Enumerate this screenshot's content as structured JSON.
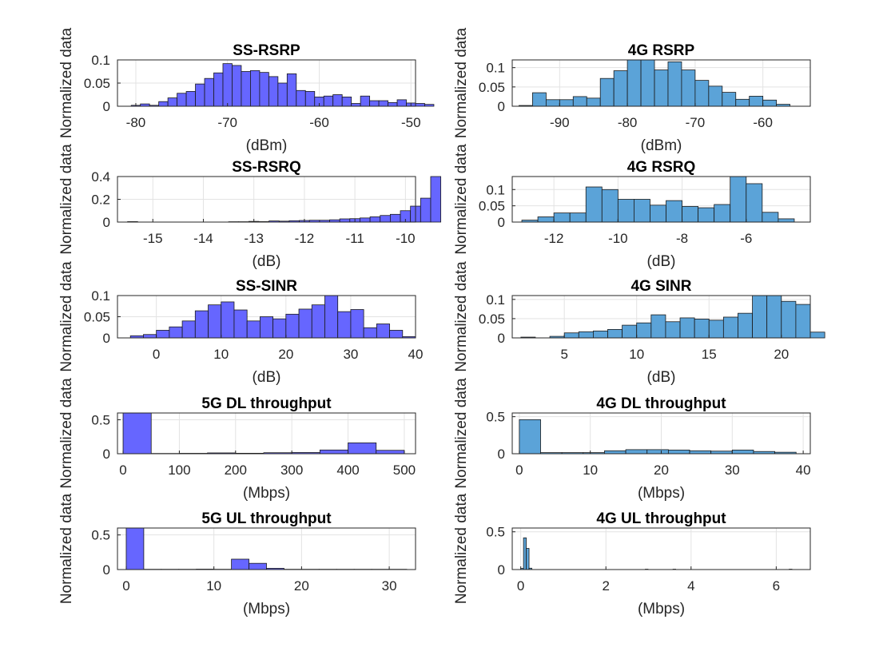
{
  "figure": {
    "ylabel": "Normalized data"
  },
  "colors": {
    "five_g": "#6666ff",
    "four_g": "#5ba3d8"
  },
  "chart_data": [
    {
      "id": "ss-rsrp",
      "type": "bar",
      "title": "SS-RSRP",
      "xlabel": "(dBm)",
      "ylabel": "Normalized data",
      "color": "#6666ff",
      "grid": true,
      "xlim": [
        -82,
        -49.5
      ],
      "ylim": [
        0,
        0.1
      ],
      "xticks": [
        -80,
        -70,
        -60,
        -50
      ],
      "xticklabels": [
        "-80",
        "-70",
        "-60",
        "-50"
      ],
      "yticks": [
        0,
        0.05,
        0.1
      ],
      "yticklabels": [
        "0",
        "0.05",
        "0.1"
      ],
      "bin_start": -80.5,
      "bin_width": 1,
      "values": [
        0.002,
        0.005,
        0.002,
        0.01,
        0.018,
        0.028,
        0.032,
        0.048,
        0.06,
        0.072,
        0.092,
        0.088,
        0.075,
        0.077,
        0.073,
        0.064,
        0.05,
        0.07,
        0.034,
        0.032,
        0.02,
        0.022,
        0.025,
        0.02,
        0.006,
        0.022,
        0.012,
        0.012,
        0.008,
        0.014,
        0.007,
        0.006,
        0.004
      ]
    },
    {
      "id": "lte-rsrp",
      "type": "bar",
      "title": "4G RSRP",
      "xlabel": "(dBm)",
      "ylabel": "Normalized data",
      "color": "#5ba3d8",
      "grid": true,
      "xlim": [
        -97,
        -53
      ],
      "ylim": [
        0,
        0.12
      ],
      "xticks": [
        -90,
        -80,
        -70,
        -60
      ],
      "xticklabels": [
        "-90",
        "-80",
        "-70",
        "-60"
      ],
      "yticks": [
        0,
        0.05,
        0.1
      ],
      "yticklabels": [
        "0",
        "0.05",
        "0.1"
      ],
      "bin_start": -96,
      "bin_width": 2,
      "values": [
        0.002,
        0.035,
        0.017,
        0.017,
        0.025,
        0.021,
        0.072,
        0.092,
        0.13,
        0.122,
        0.094,
        0.115,
        0.094,
        0.067,
        0.052,
        0.036,
        0.018,
        0.026,
        0.016,
        0.005
      ]
    },
    {
      "id": "ss-rsrq",
      "type": "bar",
      "title": "SS-RSRQ",
      "xlabel": "(dB)",
      "ylabel": "Normalized data",
      "color": "#6666ff",
      "grid": true,
      "xlim": [
        -15.7,
        -9.8
      ],
      "ylim": [
        0,
        0.4
      ],
      "xticks": [
        -15,
        -14,
        -13,
        -12,
        -11,
        -10
      ],
      "xticklabels": [
        "-15",
        "-14",
        "-13",
        "-12",
        "-11",
        "-10"
      ],
      "yticks": [
        0,
        0.2,
        0.4
      ],
      "yticklabels": [
        "0",
        "0.2",
        "0.4"
      ],
      "bin_start": -15.5,
      "bin_width": 0.2,
      "values": [
        0.004,
        0,
        0,
        0,
        0,
        0,
        0,
        0,
        0,
        0,
        0.003,
        0.003,
        0.006,
        0.004,
        0.01,
        0.008,
        0.012,
        0.014,
        0.016,
        0.016,
        0.02,
        0.028,
        0.03,
        0.036,
        0.046,
        0.058,
        0.068,
        0.1,
        0.14,
        0.21,
        0.4
      ]
    },
    {
      "id": "lte-rsrq",
      "type": "bar",
      "title": "4G RSRQ",
      "xlabel": "(dB)",
      "ylabel": "Normalized data",
      "color": "#5ba3d8",
      "grid": true,
      "xlim": [
        -13.3,
        -4.0
      ],
      "ylim": [
        0,
        0.14
      ],
      "xticks": [
        -12,
        -10,
        -8,
        -6
      ],
      "xticklabels": [
        "-12",
        "-10",
        "-8",
        "-6"
      ],
      "yticks": [
        0,
        0.05,
        0.1
      ],
      "yticklabels": [
        "0",
        "0.05",
        "0.1"
      ],
      "bin_start": -13,
      "bin_width": 0.5,
      "values": [
        0.006,
        0.016,
        0.028,
        0.028,
        0.108,
        0.1,
        0.07,
        0.07,
        0.052,
        0.066,
        0.048,
        0.044,
        0.054,
        0.14,
        0.118,
        0.03,
        0.01
      ]
    },
    {
      "id": "ss-sinr",
      "type": "bar",
      "title": "SS-SINR",
      "xlabel": "(dB)",
      "ylabel": "Normalized data",
      "color": "#6666ff",
      "grid": true,
      "xlim": [
        -6,
        40
      ],
      "ylim": [
        0,
        0.1
      ],
      "xticks": [
        0,
        10,
        20,
        30,
        40
      ],
      "xticklabels": [
        "0",
        "10",
        "20",
        "30",
        "40"
      ],
      "yticks": [
        0,
        0.05,
        0.1
      ],
      "yticklabels": [
        "0",
        "0.05",
        "0.1"
      ],
      "bin_start": -4,
      "bin_width": 2,
      "values": [
        0.005,
        0.008,
        0.018,
        0.026,
        0.04,
        0.064,
        0.078,
        0.085,
        0.066,
        0.04,
        0.05,
        0.045,
        0.056,
        0.068,
        0.078,
        0.1,
        0.062,
        0.067,
        0.024,
        0.033,
        0.018,
        0.003
      ]
    },
    {
      "id": "lte-sinr",
      "type": "bar",
      "title": "4G SINR",
      "xlabel": "(dB)",
      "ylabel": "Normalized data",
      "color": "#5ba3d8",
      "grid": true,
      "xlim": [
        1.4,
        22
      ],
      "ylim": [
        0,
        0.11
      ],
      "xticks": [
        5,
        10,
        15,
        20
      ],
      "xticklabels": [
        "5",
        "10",
        "15",
        "20"
      ],
      "yticks": [
        0,
        0.05,
        0.1
      ],
      "yticklabels": [
        "0",
        "0.05",
        "0.1"
      ],
      "bin_start": 2,
      "bin_width": 1,
      "values": [
        0.002,
        0,
        0.004,
        0.013,
        0.016,
        0.018,
        0.022,
        0.033,
        0.039,
        0.06,
        0.042,
        0.052,
        0.049,
        0.046,
        0.054,
        0.064,
        0.12,
        0.117,
        0.095,
        0.087,
        0.015
      ]
    },
    {
      "id": "fiveg-dl",
      "type": "bar",
      "title": "5G DL throughput",
      "xlabel": "(Mbps)",
      "ylabel": "Normalized data",
      "color": "#6666ff",
      "grid": true,
      "xlim": [
        -10,
        520
      ],
      "ylim": [
        0,
        0.6
      ],
      "xticks": [
        0,
        100,
        200,
        300,
        400,
        500
      ],
      "xticklabels": [
        "0",
        "100",
        "200",
        "300",
        "400",
        "500"
      ],
      "yticks": [
        0,
        0.5
      ],
      "yticklabels": [
        "0",
        "0.5"
      ],
      "bin_start": 0,
      "bin_width": 50,
      "values": [
        0.62,
        0.004,
        0.006,
        0.012,
        0.007,
        0.015,
        0.018,
        0.055,
        0.16,
        0.05
      ]
    },
    {
      "id": "lte-dl",
      "type": "bar",
      "title": "4G DL throughput",
      "xlabel": "(Mbps)",
      "ylabel": "Normalized data",
      "color": "#5ba3d8",
      "grid": true,
      "xlim": [
        -1,
        41
      ],
      "ylim": [
        0,
        0.55
      ],
      "xticks": [
        0,
        10,
        20,
        30,
        40
      ],
      "xticklabels": [
        "0",
        "10",
        "20",
        "30",
        "40"
      ],
      "yticks": [
        0,
        0.5
      ],
      "yticklabels": [
        "0",
        "0.5"
      ],
      "bin_start": 0,
      "bin_width": 3,
      "values": [
        0.46,
        0.015,
        0.015,
        0.015,
        0.04,
        0.055,
        0.055,
        0.05,
        0.04,
        0.035,
        0.05,
        0.03,
        0.02
      ]
    },
    {
      "id": "fiveg-ul",
      "type": "bar",
      "title": "5G UL throughput",
      "xlabel": "(Mbps)",
      "ylabel": "Normalized data",
      "color": "#6666ff",
      "grid": true,
      "xlim": [
        -1,
        33
      ],
      "ylim": [
        0,
        0.6
      ],
      "xticks": [
        0,
        10,
        20,
        30
      ],
      "xticklabels": [
        "0",
        "10",
        "20",
        "30"
      ],
      "yticks": [
        0,
        0.5
      ],
      "yticklabels": [
        "0",
        "0.5"
      ],
      "bin_start": 0,
      "bin_width": 2,
      "values": [
        0.62,
        0.004,
        0.004,
        0.004,
        0.006,
        0.004,
        0.15,
        0.09,
        0.018,
        0.004,
        0.004,
        0.004,
        0.004,
        0.004,
        0.004,
        0.004
      ]
    },
    {
      "id": "lte-ul",
      "type": "bar",
      "title": "4G UL throughput",
      "xlabel": "(Mbps)",
      "ylabel": "Normalized data",
      "color": "#5ba3d8",
      "grid": true,
      "xlim": [
        -0.2,
        6.8
      ],
      "ylim": [
        0,
        0.55
      ],
      "xticks": [
        0,
        2,
        4,
        6
      ],
      "xticklabels": [
        "0",
        "2",
        "4",
        "6"
      ],
      "yticks": [
        0,
        0.5
      ],
      "yticklabels": [
        "0",
        "0.5"
      ],
      "bin_start": 0,
      "bin_width": 0.065,
      "values": [
        0.015,
        0.42,
        0.28,
        0.018,
        0,
        0,
        0,
        0,
        0,
        0,
        0,
        0,
        0,
        0,
        0,
        0,
        0,
        0,
        0,
        0,
        0,
        0,
        0,
        0,
        0,
        0,
        0,
        0,
        0,
        0,
        0,
        0,
        0,
        0,
        0,
        0,
        0,
        0,
        0,
        0,
        0,
        0,
        0,
        0,
        0,
        0.005,
        0,
        0,
        0,
        0,
        0,
        0,
        0,
        0,
        0,
        0.005,
        0,
        0,
        0,
        0,
        0,
        0,
        0,
        0,
        0,
        0,
        0,
        0,
        0,
        0,
        0,
        0,
        0,
        0,
        0,
        0,
        0,
        0,
        0,
        0,
        0,
        0,
        0,
        0,
        0,
        0,
        0,
        0,
        0,
        0,
        0,
        0,
        0,
        0,
        0,
        0,
        0,
        0.005
      ]
    }
  ]
}
